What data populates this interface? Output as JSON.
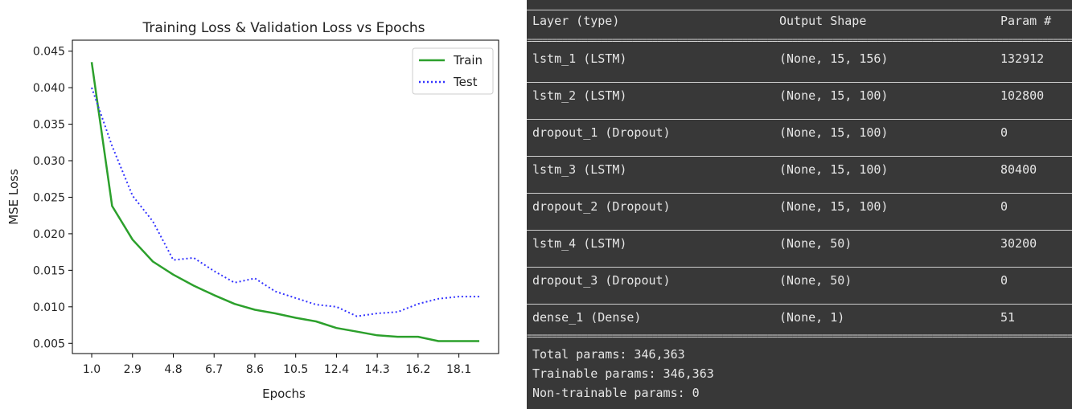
{
  "chart_data": {
    "type": "line",
    "title": "Training Loss & Validation Loss vs Epochs",
    "xlabel": "Epochs",
    "ylabel": "MSE Loss",
    "x": [
      1.0,
      1.95,
      2.9,
      3.85,
      4.8,
      5.75,
      6.7,
      7.65,
      8.6,
      9.55,
      10.5,
      11.45,
      12.4,
      13.35,
      14.3,
      15.25,
      16.2,
      17.15,
      18.1,
      19.05
    ],
    "xticks": [
      "1.0",
      "2.9",
      "4.8",
      "6.7",
      "8.6",
      "10.5",
      "12.4",
      "14.3",
      "16.2",
      "18.1"
    ],
    "xtick_values": [
      1.0,
      2.9,
      4.8,
      6.7,
      8.6,
      10.5,
      12.4,
      14.3,
      16.2,
      18.1
    ],
    "yticks": [
      "0.005",
      "0.010",
      "0.015",
      "0.020",
      "0.025",
      "0.030",
      "0.035",
      "0.040",
      "0.045"
    ],
    "ytick_values": [
      0.005,
      0.01,
      0.015,
      0.02,
      0.025,
      0.03,
      0.035,
      0.04,
      0.045
    ],
    "xlim": [
      0.1,
      19.95
    ],
    "ylim": [
      0.0036,
      0.0465
    ],
    "grid": false,
    "legend_position": "top-right",
    "series": [
      {
        "name": "Train",
        "color": "#2ca02c",
        "style": "solid",
        "values": [
          0.0435,
          0.0238,
          0.0192,
          0.0162,
          0.0144,
          0.0129,
          0.0116,
          0.0104,
          0.0096,
          0.0091,
          0.0085,
          0.008,
          0.0071,
          0.0066,
          0.0061,
          0.0059,
          0.0059,
          0.0053,
          0.0053,
          0.0053
        ]
      },
      {
        "name": "Test",
        "color": "#3333ff",
        "style": "dotted",
        "values": [
          0.04,
          0.032,
          0.0252,
          0.0217,
          0.0164,
          0.0167,
          0.0149,
          0.0133,
          0.0139,
          0.0121,
          0.0112,
          0.0103,
          0.01,
          0.0087,
          0.0091,
          0.0093,
          0.0104,
          0.0111,
          0.0114,
          0.0114
        ]
      }
    ]
  },
  "model_summary": {
    "header": {
      "layer": "Layer (type)",
      "shape": "Output Shape",
      "params": "Param #"
    },
    "rows": [
      {
        "layer": "lstm_1 (LSTM)",
        "shape": "(None, 15, 156)",
        "params": "132912"
      },
      {
        "layer": "lstm_2 (LSTM)",
        "shape": "(None, 15, 100)",
        "params": "102800"
      },
      {
        "layer": "dropout_1 (Dropout)",
        "shape": "(None, 15, 100)",
        "params": "0"
      },
      {
        "layer": "lstm_3 (LSTM)",
        "shape": "(None, 15, 100)",
        "params": "80400"
      },
      {
        "layer": "dropout_2 (Dropout)",
        "shape": "(None, 15, 100)",
        "params": "0"
      },
      {
        "layer": "lstm_4 (LSTM)",
        "shape": "(None, 50)",
        "params": "30200"
      },
      {
        "layer": "dropout_3 (Dropout)",
        "shape": "(None, 50)",
        "params": "0"
      },
      {
        "layer": "dense_1 (Dense)",
        "shape": "(None, 1)",
        "params": "51"
      }
    ],
    "total_params": "Total params: 346,363",
    "trainable_params": "Trainable params: 346,363",
    "non_trainable_params": "Non-trainable params: 0"
  }
}
